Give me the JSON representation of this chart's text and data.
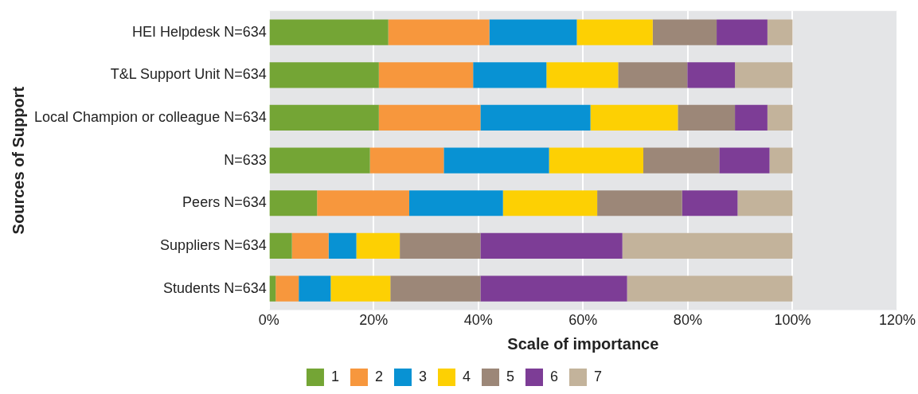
{
  "chart_data": {
    "type": "bar",
    "orientation": "horizontal",
    "stacked": true,
    "xlabel": "Scale of importance",
    "ylabel": "Sources of Support",
    "categories": [
      "HEI Helpdesk N=634",
      "T&L Support Unit N=634",
      "Local Champion or colleague N=634",
      "N=633",
      "Peers N=634",
      "Suppliers N=634",
      "Students N=634"
    ],
    "series": [
      {
        "name": "1",
        "color": "#74a535",
        "values": [
          22.8,
          21.0,
          21.0,
          19.3,
          9.2,
          4.4,
          1.3
        ]
      },
      {
        "name": "2",
        "color": "#f7973d",
        "values": [
          19.3,
          18.0,
          19.4,
          14.1,
          17.6,
          7.0,
          4.4
        ]
      },
      {
        "name": "3",
        "color": "#0892d3",
        "values": [
          16.7,
          14.0,
          21.0,
          20.1,
          17.9,
          5.3,
          6.1
        ]
      },
      {
        "name": "4",
        "color": "#fdd003",
        "values": [
          14.5,
          13.7,
          16.7,
          18.0,
          18.0,
          8.3,
          11.4
        ]
      },
      {
        "name": "5",
        "color": "#9c8778",
        "values": [
          12.2,
          13.2,
          10.9,
          14.5,
          16.2,
          15.4,
          17.2
        ]
      },
      {
        "name": "6",
        "color": "#7d3d96",
        "values": [
          9.7,
          9.1,
          6.2,
          9.6,
          10.6,
          27.1,
          28.0
        ]
      },
      {
        "name": "7",
        "color": "#c3b39b",
        "values": [
          4.8,
          11.0,
          4.8,
          4.4,
          10.5,
          32.5,
          31.6
        ]
      }
    ],
    "xlim": [
      0,
      120
    ],
    "xticks": [
      {
        "value": 0,
        "label": "0%"
      },
      {
        "value": 20,
        "label": "20%"
      },
      {
        "value": 40,
        "label": "40%"
      },
      {
        "value": 60,
        "label": "60%"
      },
      {
        "value": 80,
        "label": "80%"
      },
      {
        "value": 100,
        "label": "100%"
      },
      {
        "value": 120,
        "label": "120%"
      }
    ],
    "grid": "x",
    "legend": "bottom"
  }
}
